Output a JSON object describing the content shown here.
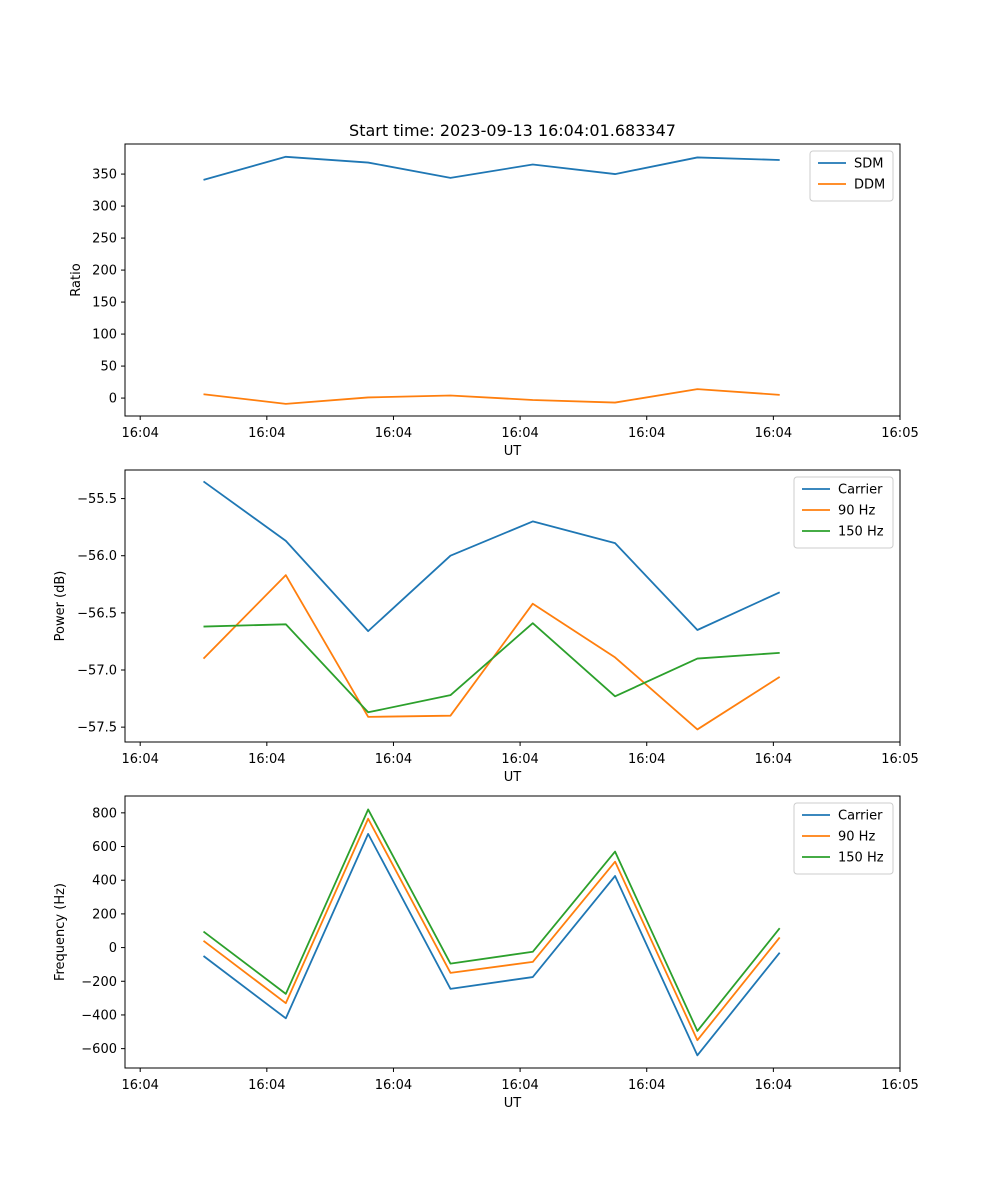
{
  "chart_data": [
    {
      "type": "line",
      "title": "Start time: 2023-09-13 16:04:01.683347",
      "xlabel": "UT",
      "ylabel": "Ratio",
      "x": [
        0.5,
        1.15,
        1.8,
        2.45,
        3.1,
        3.75,
        4.4,
        5.05
      ],
      "xlim": [
        -0.12,
        6.0
      ],
      "xticks": [
        0,
        1,
        2,
        3,
        4,
        5,
        6
      ],
      "xticklabels": [
        "16:04",
        "16:04",
        "16:04",
        "16:04",
        "16:04",
        "16:04",
        "16:05"
      ],
      "ylim": [
        -28,
        397
      ],
      "yticks": [
        0,
        50,
        100,
        150,
        200,
        250,
        300,
        350
      ],
      "legend_position": "top-right",
      "series": [
        {
          "name": "SDM",
          "color": "#1f77b4",
          "values": [
            341,
            377,
            368,
            344,
            365,
            350,
            376,
            372
          ]
        },
        {
          "name": "DDM",
          "color": "#ff7f0e",
          "values": [
            6,
            -9,
            1,
            4,
            -3,
            -7,
            14,
            5
          ]
        }
      ]
    },
    {
      "type": "line",
      "title": "",
      "xlabel": "UT",
      "ylabel": "Power (dB)",
      "x": [
        0.5,
        1.15,
        1.8,
        2.45,
        3.1,
        3.75,
        4.4,
        5.05
      ],
      "xlim": [
        -0.12,
        6.0
      ],
      "xticks": [
        0,
        1,
        2,
        3,
        4,
        5,
        6
      ],
      "xticklabels": [
        "16:04",
        "16:04",
        "16:04",
        "16:04",
        "16:04",
        "16:04",
        "16:05"
      ],
      "ylim": [
        -57.63,
        -55.25
      ],
      "yticks": [
        -57.5,
        -57.0,
        -56.5,
        -56.0,
        -55.5
      ],
      "yticklabels": [
        "−57.5",
        "−57.0",
        "−56.5",
        "−56.0",
        "−55.5"
      ],
      "legend_position": "top-right",
      "series": [
        {
          "name": "Carrier",
          "color": "#1f77b4",
          "values": [
            -55.35,
            -55.87,
            -56.66,
            -56.0,
            -55.7,
            -55.89,
            -56.65,
            -56.32
          ]
        },
        {
          "name": "90 Hz",
          "color": "#ff7f0e",
          "values": [
            -56.9,
            -56.17,
            -57.41,
            -57.4,
            -56.42,
            -56.89,
            -57.52,
            -57.06
          ]
        },
        {
          "name": "150 Hz",
          "color": "#2ca02c",
          "values": [
            -56.62,
            -56.6,
            -57.37,
            -57.22,
            -56.59,
            -57.23,
            -56.9,
            -56.85
          ]
        }
      ]
    },
    {
      "type": "line",
      "title": "",
      "xlabel": "UT",
      "ylabel": "Frequency (Hz)",
      "x": [
        0.5,
        1.15,
        1.8,
        2.45,
        3.1,
        3.75,
        4.4,
        5.05
      ],
      "xlim": [
        -0.12,
        6.0
      ],
      "xticks": [
        0,
        1,
        2,
        3,
        4,
        5,
        6
      ],
      "xticklabels": [
        "16:04",
        "16:04",
        "16:04",
        "16:04",
        "16:04",
        "16:04",
        "16:05"
      ],
      "ylim": [
        -715,
        900
      ],
      "yticks": [
        -600,
        -400,
        -200,
        0,
        200,
        400,
        600,
        800
      ],
      "yticklabels": [
        "−600",
        "−400",
        "−200",
        "0",
        "200",
        "400",
        "600",
        "800"
      ],
      "legend_position": "top-right",
      "series": [
        {
          "name": "Carrier",
          "color": "#1f77b4",
          "values": [
            -50,
            -420,
            675,
            -245,
            -175,
            425,
            -640,
            -30
          ]
        },
        {
          "name": "90 Hz",
          "color": "#ff7f0e",
          "values": [
            40,
            -330,
            765,
            -150,
            -85,
            510,
            -550,
            60
          ]
        },
        {
          "name": "150 Hz",
          "color": "#2ca02c",
          "values": [
            95,
            -275,
            820,
            -95,
            -25,
            570,
            -495,
            115
          ]
        }
      ]
    }
  ]
}
